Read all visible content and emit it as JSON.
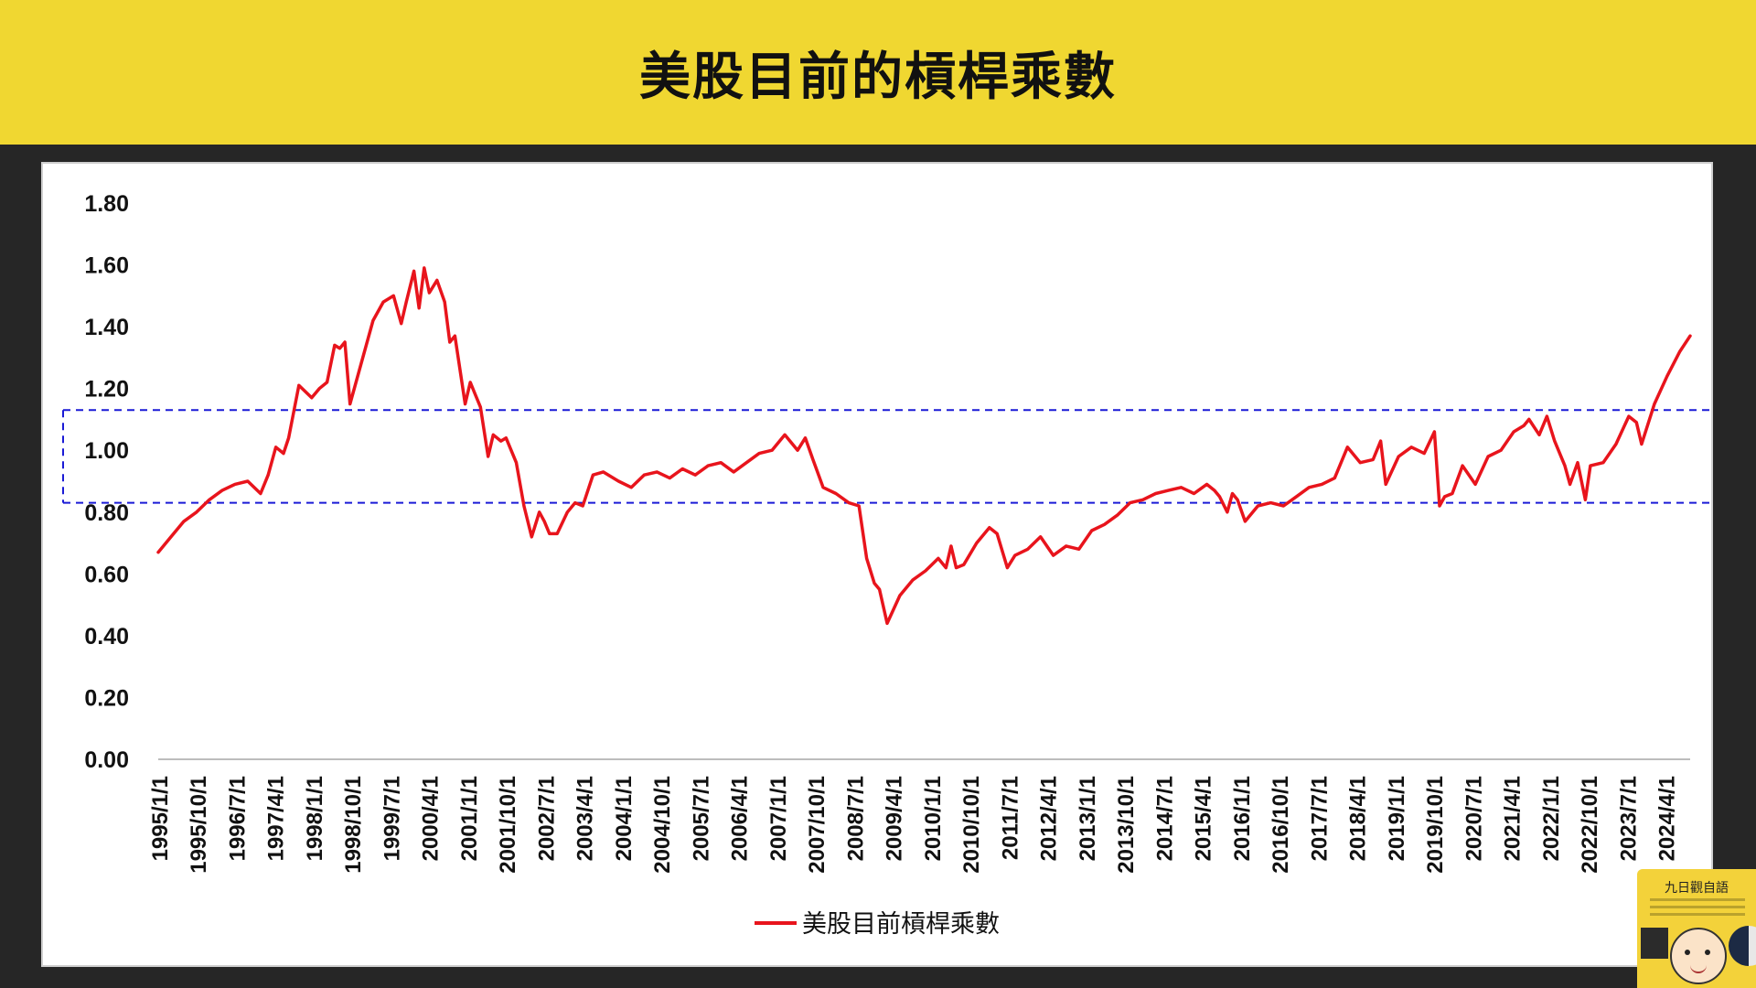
{
  "banner": {
    "title": "美股目前的槓桿乘數"
  },
  "badge": {
    "title": "九日觀自語"
  },
  "colors": {
    "series": "#e8141c",
    "band": "#1a1ad6",
    "banner": "#f0d731"
  },
  "chart_data": {
    "type": "line",
    "title": "美股目前的槓桿乘數",
    "xlabel": "",
    "ylabel": "",
    "ylim": [
      0,
      1.8
    ],
    "yticks": [
      "1.80",
      "1.60",
      "1.40",
      "1.20",
      "1.00",
      "0.80",
      "0.60",
      "0.40",
      "0.20",
      "0.00"
    ],
    "x_tick_labels": [
      "1995/1/1",
      "1995/10/1",
      "1996/7/1",
      "1997/4/1",
      "1998/1/1",
      "1998/10/1",
      "1999/7/1",
      "2000/4/1",
      "2001/1/1",
      "2001/10/1",
      "2002/7/1",
      "2003/4/1",
      "2004/1/1",
      "2004/10/1",
      "2005/7/1",
      "2006/4/1",
      "2007/1/1",
      "2007/10/1",
      "2008/7/1",
      "2009/4/1",
      "2010/1/1",
      "2010/10/1",
      "2011/7/1",
      "2012/4/1",
      "2013/1/1",
      "2013/10/1",
      "2014/7/1",
      "2015/4/1",
      "2016/1/1",
      "2016/10/1",
      "2017/7/1",
      "2018/4/1",
      "2019/1/1",
      "2019/10/1",
      "2020/7/1",
      "2021/4/1",
      "2022/1/1",
      "2022/10/1",
      "2023/7/1",
      "2024/4/1"
    ],
    "legend": {
      "position": "bottom",
      "entries": [
        "美股目前槓桿乘數"
      ]
    },
    "reference_band": {
      "lower": 0.83,
      "upper": 1.13,
      "style": "dashed"
    },
    "grid": false,
    "series": [
      {
        "name": "美股目前槓桿乘數",
        "x": [
          1995.0,
          1995.25,
          1995.5,
          1995.75,
          1996.0,
          1996.25,
          1996.5,
          1996.75,
          1997.0,
          1997.15,
          1997.3,
          1997.45,
          1997.55,
          1997.75,
          1998.0,
          1998.15,
          1998.3,
          1998.45,
          1998.55,
          1998.65,
          1998.75,
          1999.0,
          1999.2,
          1999.4,
          1999.6,
          1999.75,
          1999.85,
          2000.0,
          2000.1,
          2000.2,
          2000.3,
          2000.45,
          2000.6,
          2000.7,
          2000.8,
          2001.0,
          2001.1,
          2001.2,
          2001.3,
          2001.45,
          2001.55,
          2001.7,
          2001.8,
          2002.0,
          2002.15,
          2002.3,
          2002.45,
          2002.55,
          2002.65,
          2002.8,
          2003.0,
          2003.15,
          2003.3,
          2003.5,
          2003.7,
          2004.0,
          2004.25,
          2004.5,
          2004.75,
          2005.0,
          2005.25,
          2005.5,
          2005.75,
          2006.0,
          2006.25,
          2006.5,
          2006.75,
          2007.0,
          2007.25,
          2007.5,
          2007.65,
          2007.8,
          2008.0,
          2008.25,
          2008.5,
          2008.7,
          2008.85,
          2009.0,
          2009.1,
          2009.25,
          2009.5,
          2009.75,
          2010.0,
          2010.25,
          2010.4,
          2010.5,
          2010.6,
          2010.75,
          2011.0,
          2011.25,
          2011.4,
          2011.6,
          2011.75,
          2012.0,
          2012.25,
          2012.5,
          2012.75,
          2013.0,
          2013.25,
          2013.5,
          2013.75,
          2014.0,
          2014.25,
          2014.5,
          2014.75,
          2015.0,
          2015.25,
          2015.5,
          2015.65,
          2015.75,
          2015.9,
          2016.0,
          2016.1,
          2016.25,
          2016.5,
          2016.75,
          2017.0,
          2017.25,
          2017.5,
          2017.75,
          2018.0,
          2018.1,
          2018.25,
          2018.5,
          2018.75,
          2018.9,
          2019.0,
          2019.25,
          2019.5,
          2019.75,
          2019.95,
          2020.05,
          2020.15,
          2020.3,
          2020.5,
          2020.75,
          2021.0,
          2021.25,
          2021.5,
          2021.7,
          2021.8,
          2022.0,
          2022.15,
          2022.3,
          2022.5,
          2022.6,
          2022.75,
          2022.9,
          2023.0,
          2023.25,
          2023.5,
          2023.75,
          2023.9,
          2024.0,
          2024.25,
          2024.5,
          2024.75,
          2024.95
        ],
        "y": [
          0.67,
          0.72,
          0.77,
          0.8,
          0.84,
          0.87,
          0.89,
          0.9,
          0.86,
          0.92,
          1.01,
          0.99,
          1.04,
          1.21,
          1.17,
          1.2,
          1.22,
          1.34,
          1.33,
          1.35,
          1.15,
          1.3,
          1.42,
          1.48,
          1.5,
          1.41,
          1.48,
          1.58,
          1.46,
          1.59,
          1.51,
          1.55,
          1.48,
          1.35,
          1.37,
          1.15,
          1.22,
          1.18,
          1.14,
          0.98,
          1.05,
          1.03,
          1.04,
          0.96,
          0.82,
          0.72,
          0.8,
          0.77,
          0.73,
          0.73,
          0.8,
          0.83,
          0.82,
          0.92,
          0.93,
          0.9,
          0.88,
          0.92,
          0.93,
          0.91,
          0.94,
          0.92,
          0.95,
          0.96,
          0.93,
          0.96,
          0.99,
          1.0,
          1.05,
          1.0,
          1.04,
          0.97,
          0.88,
          0.86,
          0.83,
          0.82,
          0.65,
          0.57,
          0.55,
          0.44,
          0.53,
          0.58,
          0.61,
          0.65,
          0.62,
          0.69,
          0.62,
          0.63,
          0.7,
          0.75,
          0.73,
          0.62,
          0.66,
          0.68,
          0.72,
          0.66,
          0.69,
          0.68,
          0.74,
          0.76,
          0.79,
          0.83,
          0.84,
          0.86,
          0.87,
          0.88,
          0.86,
          0.89,
          0.87,
          0.85,
          0.8,
          0.86,
          0.84,
          0.77,
          0.82,
          0.83,
          0.82,
          0.85,
          0.88,
          0.89,
          0.91,
          0.95,
          1.01,
          0.96,
          0.97,
          1.03,
          0.89,
          0.98,
          1.01,
          0.99,
          1.06,
          0.82,
          0.85,
          0.86,
          0.95,
          0.89,
          0.98,
          1.0,
          1.06,
          1.08,
          1.1,
          1.05,
          1.11,
          1.03,
          0.95,
          0.89,
          0.96,
          0.84,
          0.95,
          0.96,
          1.02,
          1.11,
          1.09,
          1.02,
          1.15,
          1.24,
          1.32,
          1.37
        ]
      }
    ]
  }
}
